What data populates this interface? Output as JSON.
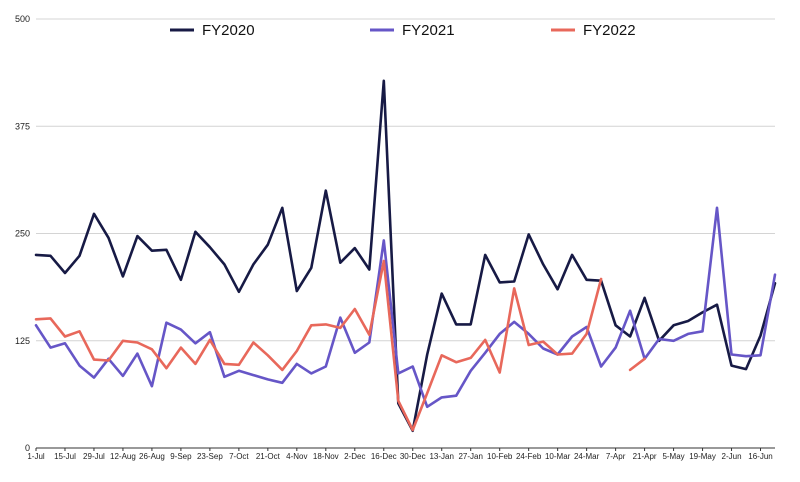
{
  "chart_data": {
    "type": "line",
    "title": "",
    "xlabel": "",
    "ylabel": "",
    "ylim": [
      0,
      500
    ],
    "yticks": [
      0,
      125,
      250,
      375,
      500
    ],
    "grid": true,
    "legend_position": "top",
    "x": [
      "1-Jul",
      "8-Jul",
      "15-Jul",
      "22-Jul",
      "29-Jul",
      "5-Aug",
      "12-Aug",
      "19-Aug",
      "26-Aug",
      "2-Sep",
      "9-Sep",
      "16-Sep",
      "23-Sep",
      "30-Sep",
      "7-Oct",
      "14-Oct",
      "21-Oct",
      "28-Oct",
      "4-Nov",
      "11-Nov",
      "18-Nov",
      "25-Nov",
      "2-Dec",
      "9-Dec",
      "16-Dec",
      "23-Dec",
      "30-Dec",
      "6-Jan",
      "13-Jan",
      "20-Jan",
      "27-Jan",
      "3-Feb",
      "10-Feb",
      "17-Feb",
      "24-Feb",
      "3-Mar",
      "10-Mar",
      "17-Mar",
      "24-Mar",
      "31-Mar",
      "7-Apr",
      "14-Apr",
      "21-Apr",
      "28-Apr",
      "5-May",
      "12-May",
      "19-May",
      "26-May",
      "2-Jun",
      "9-Jun",
      "16-Jun",
      "23-Jun"
    ],
    "x_tick_labels": [
      "1-Jul",
      "15-Jul",
      "29-Jul",
      "12-Aug",
      "26-Aug",
      "9-Sep",
      "23-Sep",
      "7-Oct",
      "21-Oct",
      "4-Nov",
      "18-Nov",
      "2-Dec",
      "16-Dec",
      "30-Dec",
      "13-Jan",
      "27-Jan",
      "10-Feb",
      "24-Feb",
      "10-Mar",
      "24-Mar",
      "7-Apr",
      "21-Apr",
      "5-May",
      "19-May",
      "2-Jun",
      "16-Jun"
    ],
    "series": [
      {
        "name": "FY2020",
        "color": "#171a45",
        "values": [
          225,
          224,
          204,
          224,
          273,
          245,
          200,
          247,
          230,
          231,
          196,
          252,
          234,
          214,
          182,
          214,
          237,
          280,
          183,
          210,
          300,
          216,
          233,
          208,
          428,
          52,
          20,
          109,
          180,
          144,
          144,
          225,
          193,
          194,
          249,
          214,
          185,
          225,
          196,
          195,
          143,
          130,
          175,
          125,
          143,
          148,
          158,
          167,
          96,
          92,
          131,
          192
        ]
      },
      {
        "name": "FY2021",
        "color": "#6656c7",
        "values": [
          143,
          117,
          122,
          96,
          82,
          104,
          84,
          110,
          72,
          146,
          138,
          122,
          135,
          83,
          90,
          85,
          80,
          76,
          98,
          87,
          95,
          152,
          111,
          123,
          242,
          87,
          95,
          48,
          59,
          61,
          90,
          111,
          133,
          147,
          133,
          116,
          109,
          130,
          141,
          95,
          117,
          160,
          104,
          127,
          125,
          133,
          136,
          280,
          109,
          107,
          108,
          202
        ]
      },
      {
        "name": "FY2022",
        "color": "#e8685b",
        "values": [
          150,
          151,
          130,
          136,
          103,
          102,
          125,
          123,
          115,
          93,
          117,
          98,
          126,
          98,
          97,
          123,
          108,
          91,
          113,
          143,
          144,
          140,
          162,
          132,
          218,
          55,
          21,
          64,
          108,
          100,
          105,
          126,
          88,
          186,
          120,
          124,
          109,
          110,
          133,
          197,
          null,
          91,
          104,
          null,
          null,
          null,
          null,
          null,
          null,
          null,
          null,
          null
        ]
      }
    ]
  }
}
